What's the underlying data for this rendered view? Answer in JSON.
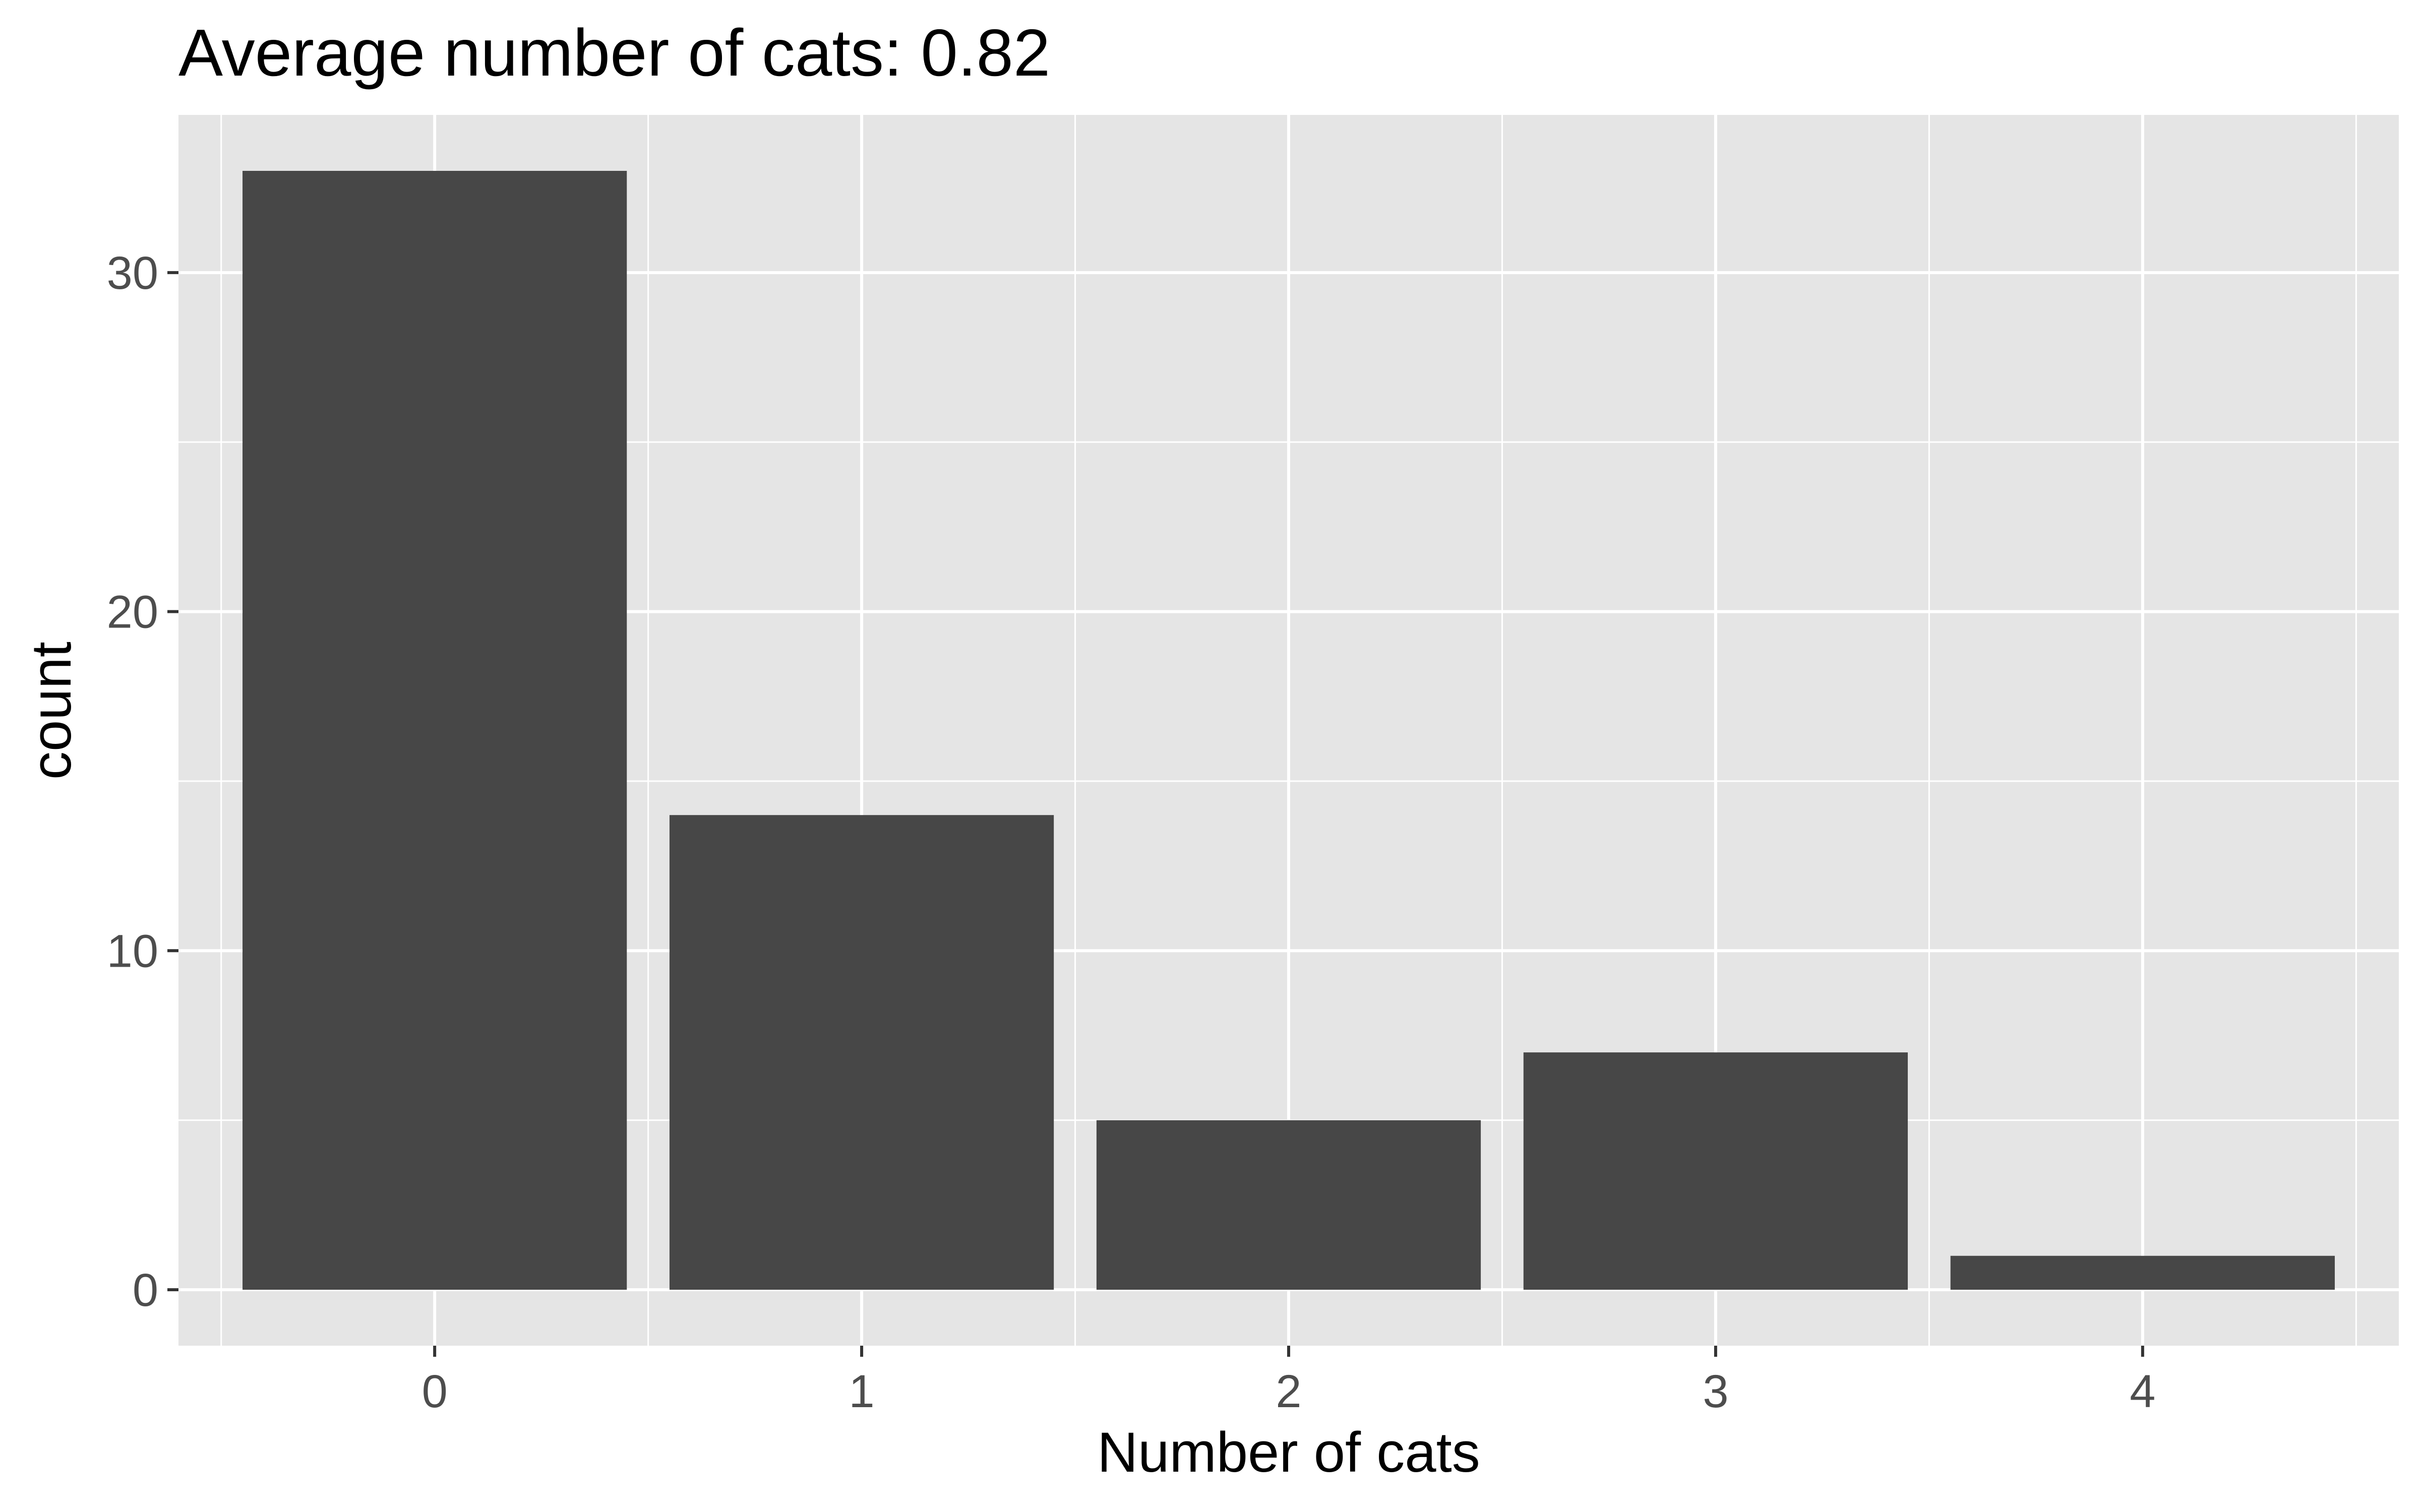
{
  "chart_data": {
    "type": "bar",
    "title": "Average number of cats: 0.82",
    "xlabel": "Number of cats",
    "ylabel": "count",
    "categories": [
      "0",
      "1",
      "2",
      "3",
      "4"
    ],
    "values": [
      33,
      14,
      5,
      7,
      1
    ],
    "y_ticks": [
      "0",
      "10",
      "20",
      "30"
    ],
    "ylim": [
      -1.65,
      34.65
    ],
    "grid": true,
    "colors": {
      "bar": "#474747",
      "panel": "#e5e5e5",
      "grid": "#ffffff",
      "tick_text": "#4d4d4d",
      "axis_text": "#000000"
    }
  }
}
